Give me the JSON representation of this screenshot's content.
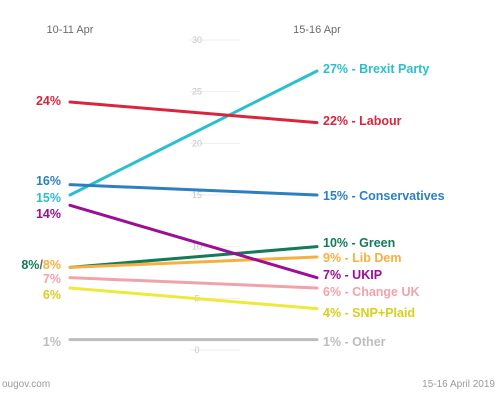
{
  "chart_data": {
    "type": "line",
    "x": [
      "10-11 Apr",
      "15-16 Apr"
    ],
    "ylim": [
      0,
      30
    ],
    "yticks": [
      0,
      5,
      10,
      15,
      20,
      25,
      30
    ],
    "grid": true,
    "series": [
      {
        "name": "Brexit Party",
        "values": [
          15,
          27
        ],
        "color": "#2bbfce",
        "start_label": "15%",
        "end_label": "27% - Brexit Party"
      },
      {
        "name": "Labour",
        "values": [
          24,
          22
        ],
        "color": "#d7263d",
        "start_label": "24%",
        "end_label": "22% - Labour"
      },
      {
        "name": "Conservatives",
        "values": [
          16,
          15
        ],
        "color": "#2e7fc1",
        "start_label": "16%",
        "end_label": "15% - Conservatives"
      },
      {
        "name": "Green",
        "values": [
          8,
          10
        ],
        "color": "#137a5a",
        "start_label": "8%",
        "end_label": "10% - Green"
      },
      {
        "name": "Lib Dem",
        "values": [
          8,
          9
        ],
        "color": "#f5b041",
        "start_label": "8%",
        "end_label": "9% - Lib Dem"
      },
      {
        "name": "UKIP",
        "values": [
          14,
          7
        ],
        "color": "#9b0e96",
        "start_label": "14%",
        "end_label": "7% - UKIP"
      },
      {
        "name": "Change UK",
        "values": [
          7,
          6
        ],
        "color": "#f0a3a9",
        "start_label": "7%",
        "end_label": "6% - Change UK"
      },
      {
        "name": "SNP+Plaid",
        "values": [
          6,
          4
        ],
        "color": "#eee93a",
        "start_label": "6%",
        "end_label": "4% - SNP+Plaid"
      },
      {
        "name": "Other",
        "values": [
          1,
          1
        ],
        "color": "#bdbdbd",
        "start_label": "1%",
        "end_label": "1% - Other"
      }
    ],
    "start_combined_label": {
      "parts": [
        "8%",
        "/",
        "8%"
      ],
      "colors": [
        "#137a5a",
        "#6b6b6b",
        "#f5b041"
      ]
    }
  },
  "footer": {
    "source": "ougov.com",
    "date": "15-16 April 2019"
  }
}
